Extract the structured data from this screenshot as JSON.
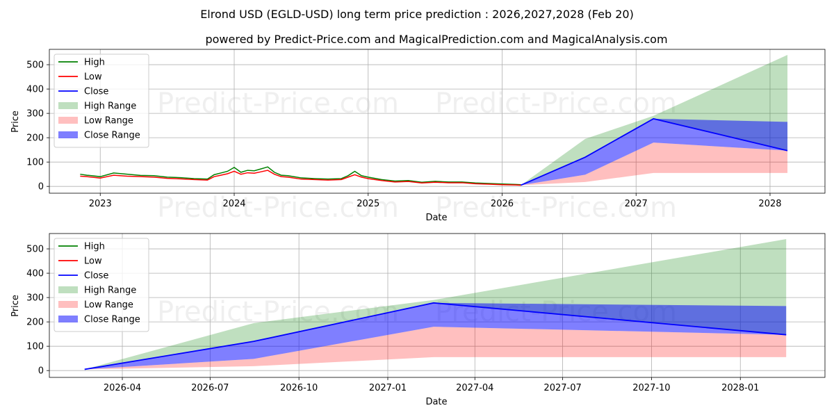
{
  "figure": {
    "title": "Elrond USD (EGLD-USD) long term price prediction : 2026,2027,2028 (Feb 20)",
    "subtitle": "powered by Predict-Price.com and MagicalPrediction.com and MagicalAnalysis.com",
    "watermark": "Predict-Price.com"
  },
  "colors": {
    "high": "#008000",
    "low": "#ff0000",
    "close": "#0000ff",
    "high_range": "#008000",
    "low_range": "#ff0000",
    "close_range": "#0000ff"
  },
  "chart_data": [
    {
      "type": "line",
      "title": "",
      "xlabel": "Date",
      "ylabel": "Price",
      "grid": true,
      "legend": "top-left",
      "xlim": [
        2022.62,
        2028.41
      ],
      "ylim": [
        -28,
        563
      ],
      "x_ticks": [
        2023,
        2024,
        2025,
        2026,
        2027,
        2028
      ],
      "x_tick_labels": [
        "2023",
        "2024",
        "2025",
        "2026",
        "2027",
        "2028"
      ],
      "y_ticks": [
        0,
        100,
        200,
        300,
        400,
        500
      ],
      "y_tick_labels": [
        "0",
        "100",
        "200",
        "300",
        "400",
        "500"
      ],
      "legend_entries": [
        "High",
        "Low",
        "Close",
        "High Range",
        "Low Range",
        "Close Range"
      ],
      "history": {
        "x": [
          2022.85,
          2022.9,
          2023.0,
          2023.1,
          2023.2,
          2023.3,
          2023.4,
          2023.5,
          2023.6,
          2023.7,
          2023.8,
          2023.85,
          2023.9,
          2023.95,
          2024.0,
          2024.05,
          2024.1,
          2024.15,
          2024.2,
          2024.25,
          2024.3,
          2024.35,
          2024.4,
          2024.5,
          2024.6,
          2024.7,
          2024.8,
          2024.85,
          2024.9,
          2024.95,
          2025.0,
          2025.1,
          2025.2,
          2025.3,
          2025.4,
          2025.5,
          2025.6,
          2025.7,
          2025.8,
          2025.9,
          2026.0,
          2026.1,
          2026.14
        ],
        "high": [
          50,
          46,
          40,
          55,
          50,
          45,
          44,
          38,
          36,
          32,
          30,
          48,
          55,
          62,
          78,
          58,
          66,
          64,
          72,
          80,
          58,
          46,
          44,
          35,
          32,
          30,
          32,
          44,
          62,
          44,
          38,
          28,
          22,
          24,
          17,
          21,
          18,
          18,
          14,
          12,
          10,
          8,
          7
        ],
        "low": [
          42,
          40,
          34,
          46,
          42,
          40,
          38,
          33,
          31,
          28,
          26,
          40,
          46,
          52,
          62,
          50,
          56,
          54,
          60,
          66,
          50,
          40,
          38,
          30,
          28,
          26,
          28,
          38,
          48,
          38,
          32,
          24,
          18,
          20,
          14,
          17,
          15,
          15,
          11,
          9,
          7,
          6,
          5
        ]
      },
      "forecast": {
        "x": [
          2026.14,
          2026.62,
          2027.13,
          2028.13
        ],
        "close": [
          5,
          120,
          278,
          147
        ],
        "high_range": {
          "lower": [
            5,
            120,
            278,
            147
          ],
          "upper": [
            5,
            195,
            290,
            540
          ]
        },
        "low_range": {
          "lower": [
            5,
            18,
            55,
            55
          ],
          "upper": [
            5,
            48,
            180,
            147
          ]
        },
        "close_range": {
          "lower": [
            5,
            48,
            180,
            147
          ],
          "upper": [
            5,
            120,
            278,
            265
          ]
        }
      }
    },
    {
      "type": "line",
      "title": "",
      "xlabel": "Date",
      "ylabel": "Price",
      "grid": true,
      "legend": "top-left",
      "xlim": [
        2026.04,
        2028.24
      ],
      "ylim": [
        -28,
        563
      ],
      "x_ticks": [
        2026.247,
        2026.496,
        2026.748,
        2027.0,
        2027.247,
        2027.496,
        2027.748,
        2028.0
      ],
      "x_tick_labels": [
        "2026-04",
        "2026-07",
        "2026-10",
        "2027-01",
        "2027-04",
        "2027-07",
        "2027-10",
        "2028-01"
      ],
      "y_ticks": [
        0,
        100,
        200,
        300,
        400,
        500
      ],
      "y_tick_labels": [
        "0",
        "100",
        "200",
        "300",
        "400",
        "500"
      ],
      "legend_entries": [
        "High",
        "Low",
        "Close",
        "High Range",
        "Low Range",
        "Close Range"
      ],
      "forecast": {
        "x": [
          2026.14,
          2026.62,
          2027.13,
          2028.13
        ],
        "close": [
          5,
          120,
          278,
          147
        ],
        "high_range": {
          "lower": [
            5,
            120,
            278,
            147
          ],
          "upper": [
            5,
            195,
            290,
            540
          ]
        },
        "low_range": {
          "lower": [
            5,
            18,
            55,
            55
          ],
          "upper": [
            5,
            48,
            180,
            147
          ]
        },
        "close_range": {
          "lower": [
            5,
            48,
            180,
            147
          ],
          "upper": [
            5,
            120,
            278,
            265
          ]
        }
      }
    }
  ]
}
